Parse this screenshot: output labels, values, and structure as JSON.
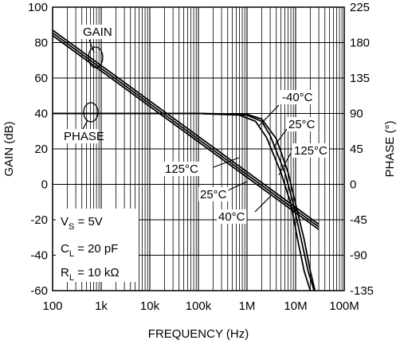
{
  "chart_data": {
    "type": "line",
    "title": "",
    "xlabel": "FREQUENCY (Hz)",
    "ylabel_left": "GAIN (dB)",
    "ylabel_right": "PHASE (°)",
    "x_scale": "log",
    "xlim": [
      100,
      100000000
    ],
    "ylim_gain": [
      -60,
      100
    ],
    "ylim_phase": [
      -135,
      225
    ],
    "grid": true,
    "x_ticks": [
      {
        "value": 100,
        "label": "100"
      },
      {
        "value": 1000,
        "label": "1k"
      },
      {
        "value": 10000,
        "label": "10k"
      },
      {
        "value": 100000,
        "label": "100k"
      },
      {
        "value": 1000000,
        "label": "1M"
      },
      {
        "value": 10000000,
        "label": "10M"
      },
      {
        "value": 100000000,
        "label": "100M"
      }
    ],
    "gain_ticks": [
      {
        "value": 100,
        "label": "100"
      },
      {
        "value": 80,
        "label": "80"
      },
      {
        "value": 60,
        "label": "60"
      },
      {
        "value": 40,
        "label": "40"
      },
      {
        "value": 20,
        "label": "20"
      },
      {
        "value": 0,
        "label": "0"
      },
      {
        "value": -20,
        "label": "-20"
      },
      {
        "value": -40,
        "label": "-40"
      },
      {
        "value": -60,
        "label": "-60"
      }
    ],
    "phase_ticks": [
      {
        "value": 225,
        "label": "225"
      },
      {
        "value": 180,
        "label": "180"
      },
      {
        "value": 135,
        "label": "135"
      },
      {
        "value": 90,
        "label": "90"
      },
      {
        "value": 45,
        "label": "45"
      },
      {
        "value": 0,
        "label": "0"
      },
      {
        "value": -45,
        "label": "-45"
      },
      {
        "value": -90,
        "label": "-90"
      },
      {
        "value": -135,
        "label": "-135"
      }
    ],
    "series": [
      {
        "group": "gain",
        "name": "",
        "axis": "left",
        "x": [
          100,
          1000,
          10000,
          100000,
          1000000,
          10000000,
          30000000
        ],
        "y": [
          87,
          67,
          47,
          27,
          7,
          -13,
          -22.5
        ]
      },
      {
        "group": "gain",
        "name": "",
        "axis": "left",
        "x": [
          100,
          1000,
          10000,
          100000,
          1000000,
          10000000,
          30000000
        ],
        "y": [
          85.5,
          65.5,
          45.5,
          25.5,
          5.5,
          -14.5,
          -24
        ]
      },
      {
        "group": "gain",
        "name": "",
        "axis": "left",
        "x": [
          100,
          1000,
          10000,
          100000,
          1000000,
          10000000,
          30000000
        ],
        "y": [
          84,
          64,
          44,
          24,
          4,
          -16,
          -25.5
        ]
      },
      {
        "group": "phase",
        "name": "-40°C",
        "axis": "right",
        "x": [
          100,
          1000,
          100000,
          1000000,
          2000000,
          4000000,
          7000000,
          10000000,
          15000000,
          20000000,
          25000000
        ],
        "y": [
          90,
          90,
          90,
          89,
          83,
          58,
          15,
          -25,
          -70,
          -110,
          -135
        ]
      },
      {
        "group": "phase",
        "name": "25°C",
        "axis": "right",
        "x": [
          100,
          1000,
          100000,
          1000000,
          2000000,
          3000000,
          6000000,
          9000000,
          13000000,
          18000000,
          24000000
        ],
        "y": [
          90,
          90,
          90,
          88,
          80,
          62,
          15,
          -25,
          -70,
          -110,
          -135
        ]
      },
      {
        "group": "phase",
        "name": "125°C",
        "axis": "right",
        "x": [
          100,
          1000,
          100000,
          700000,
          1500000,
          2500000,
          5000000,
          8000000,
          11000000,
          15000000,
          20000000
        ],
        "y": [
          90,
          90,
          90,
          88,
          80,
          60,
          15,
          -25,
          -70,
          -110,
          -135
        ]
      }
    ],
    "annotations": [
      {
        "text": "GAIN"
      },
      {
        "text": "PHASE"
      },
      {
        "text": "-40°C"
      },
      {
        "text": "25°C"
      },
      {
        "text": "125°C"
      },
      {
        "text": "125°C"
      },
      {
        "text": "25°C"
      },
      {
        "text": "40°C"
      }
    ],
    "conditions": [
      {
        "pre": "V",
        "sub": "S",
        "post": " = 5V"
      },
      {
        "pre": "C",
        "sub": "L",
        "post": " = 20 pF"
      },
      {
        "pre": "R",
        "sub": "L",
        "post": " = 10 kΩ"
      }
    ]
  }
}
